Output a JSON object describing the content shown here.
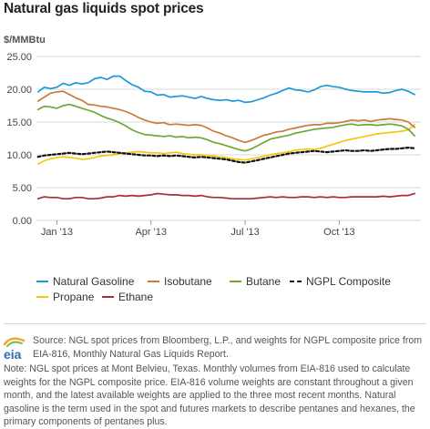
{
  "title": "Natural gas liquids spot prices",
  "unit_label": "$/MMBtu",
  "logo_text": "eia",
  "source_text": "Source: NGL spot prices from Bloomberg, L.P., and weights for NGPL composite price from EIA-816, Monthly Natural Gas Liquids Report.",
  "note_text": "Note: NGL spot prices at Mont Belvieu, Texas. Monthly volumes from EIA-816 used to calculate weights for the NGPL composite price. EIA-816 volume weights are constant throughout a given month, and the latest available weights are applied to the three most recent months. Natural gasoline is the term used in the spot and futures markets to describe pentanes and hexanes, the primary components of pentanes plus.",
  "chart_data": {
    "type": "line",
    "title": "Natural gas liquids spot prices",
    "ylabel": "$/MMBtu",
    "ylim": [
      0,
      25
    ],
    "yticks": [
      "0.00",
      "5.00",
      "10.00",
      "15.00",
      "20.00",
      "25.00"
    ],
    "ytick_values": [
      0,
      5,
      10,
      15,
      20,
      25
    ],
    "xlim": [
      -0.65,
      11.6
    ],
    "xticks": [
      {
        "label": "Jan '13",
        "month": 0
      },
      {
        "label": "Apr '13",
        "month": 3
      },
      {
        "label": "Jul '13",
        "month": 6
      },
      {
        "label": "Oct '13",
        "month": 9
      }
    ],
    "grid": true,
    "legend_position": "bottom",
    "x": [
      -0.6,
      -0.4,
      -0.2,
      0,
      0.2,
      0.4,
      0.6,
      0.8,
      1,
      1.2,
      1.4,
      1.6,
      1.8,
      2,
      2.2,
      2.4,
      2.6,
      2.8,
      3,
      3.2,
      3.4,
      3.6,
      3.8,
      4,
      4.2,
      4.4,
      4.6,
      4.8,
      5,
      5.2,
      5.4,
      5.6,
      5.8,
      6,
      6.2,
      6.4,
      6.6,
      6.8,
      7,
      7.2,
      7.4,
      7.6,
      7.8,
      8,
      8.2,
      8.4,
      8.6,
      8.8,
      9,
      9.2,
      9.4,
      9.6,
      9.8,
      10,
      10.2,
      10.4,
      10.6,
      10.8,
      11,
      11.2,
      11.4
    ],
    "series": [
      {
        "name": "Natural Gasoline",
        "color": "#1a9ad6",
        "dash": false,
        "values": [
          19.6,
          20.3,
          20.1,
          20.3,
          20.9,
          20.6,
          21.0,
          20.8,
          21.0,
          21.6,
          21.8,
          21.5,
          22.0,
          22.0,
          21.3,
          20.7,
          20.3,
          19.7,
          19.6,
          19.1,
          19.2,
          18.8,
          18.9,
          19.0,
          18.8,
          18.6,
          18.9,
          18.6,
          18.4,
          18.3,
          18.4,
          18.2,
          18.3,
          18.0,
          18.1,
          18.4,
          18.7,
          19.1,
          19.4,
          19.8,
          20.2,
          19.9,
          19.8,
          19.6,
          19.9,
          20.4,
          20.6,
          20.4,
          20.3,
          20.0,
          19.8,
          19.7,
          19.6,
          19.6,
          19.6,
          19.4,
          19.5,
          19.8,
          20.0,
          19.7,
          19.2
        ]
      },
      {
        "name": "Isobutane",
        "color": "#cc7a3c",
        "dash": false,
        "values": [
          18.2,
          18.8,
          19.4,
          19.6,
          19.7,
          19.2,
          18.7,
          18.3,
          17.7,
          17.6,
          17.4,
          17.3,
          17.1,
          16.9,
          16.6,
          16.2,
          15.7,
          15.3,
          15.0,
          14.8,
          14.9,
          14.6,
          14.7,
          14.6,
          14.5,
          14.6,
          14.5,
          14.1,
          13.6,
          13.3,
          12.9,
          12.6,
          12.2,
          11.9,
          12.2,
          12.6,
          13.0,
          13.2,
          13.5,
          13.6,
          13.9,
          14.1,
          14.3,
          14.5,
          14.6,
          14.6,
          14.8,
          14.8,
          14.9,
          15.1,
          15.3,
          15.2,
          15.3,
          15.1,
          15.3,
          15.4,
          15.5,
          15.4,
          15.3,
          15.0,
          14.2
        ]
      },
      {
        "name": "Butane",
        "color": "#6da832",
        "dash": false,
        "values": [
          16.9,
          17.4,
          17.3,
          17.1,
          17.5,
          17.7,
          17.4,
          17.1,
          16.8,
          16.5,
          16.0,
          15.6,
          15.3,
          14.9,
          14.4,
          13.8,
          13.4,
          13.1,
          13.0,
          12.9,
          12.8,
          12.9,
          12.7,
          12.8,
          12.6,
          12.7,
          12.6,
          12.3,
          11.9,
          11.7,
          11.4,
          11.1,
          10.8,
          10.6,
          10.9,
          11.4,
          11.9,
          12.4,
          12.6,
          12.8,
          13.0,
          13.3,
          13.5,
          13.7,
          13.9,
          14.0,
          14.1,
          14.2,
          14.4,
          14.6,
          14.7,
          14.5,
          14.6,
          14.6,
          14.5,
          14.6,
          14.7,
          14.6,
          14.4,
          13.9,
          12.9
        ]
      },
      {
        "name": "NGPL Composite",
        "color": "#111111",
        "dash": true,
        "values": [
          9.7,
          9.9,
          10.0,
          10.1,
          10.2,
          10.3,
          10.2,
          10.1,
          10.2,
          10.3,
          10.4,
          10.5,
          10.4,
          10.3,
          10.2,
          10.1,
          10.0,
          9.9,
          9.9,
          9.8,
          9.9,
          9.8,
          9.9,
          9.8,
          9.7,
          9.6,
          9.7,
          9.6,
          9.5,
          9.4,
          9.3,
          9.1,
          8.9,
          8.8,
          9.0,
          9.2,
          9.4,
          9.6,
          9.8,
          10.0,
          10.2,
          10.3,
          10.4,
          10.5,
          10.6,
          10.5,
          10.4,
          10.5,
          10.6,
          10.7,
          10.6,
          10.6,
          10.7,
          10.6,
          10.7,
          10.8,
          10.9,
          10.9,
          11.0,
          11.1,
          11.0
        ]
      },
      {
        "name": "Propane",
        "color": "#f2c80f",
        "dash": false,
        "values": [
          8.6,
          9.1,
          9.4,
          9.6,
          9.7,
          9.6,
          9.5,
          9.3,
          9.4,
          9.6,
          9.8,
          9.9,
          10.0,
          10.2,
          10.3,
          10.4,
          10.5,
          10.4,
          10.3,
          10.3,
          10.2,
          10.3,
          10.4,
          10.2,
          10.1,
          10.0,
          10.0,
          9.9,
          9.8,
          9.7,
          9.6,
          9.4,
          9.3,
          9.2,
          9.4,
          9.6,
          9.8,
          10.0,
          10.2,
          10.3,
          10.5,
          10.7,
          10.8,
          10.9,
          10.8,
          11.0,
          11.3,
          11.6,
          11.9,
          12.2,
          12.4,
          12.6,
          12.8,
          13.0,
          13.2,
          13.3,
          13.4,
          13.5,
          13.6,
          13.8,
          14.6
        ]
      },
      {
        "name": "Ethane",
        "color": "#a3303a",
        "dash": false,
        "values": [
          3.3,
          3.6,
          3.5,
          3.5,
          3.3,
          3.3,
          3.5,
          3.5,
          3.3,
          3.3,
          3.4,
          3.6,
          3.6,
          3.8,
          3.7,
          3.8,
          3.7,
          3.8,
          3.9,
          4.1,
          4.0,
          3.9,
          3.9,
          3.8,
          3.8,
          3.7,
          3.8,
          3.6,
          3.5,
          3.5,
          3.4,
          3.3,
          3.3,
          3.3,
          3.3,
          3.4,
          3.5,
          3.6,
          3.5,
          3.6,
          3.5,
          3.5,
          3.6,
          3.6,
          3.5,
          3.6,
          3.5,
          3.6,
          3.5,
          3.5,
          3.6,
          3.6,
          3.6,
          3.6,
          3.6,
          3.7,
          3.6,
          3.7,
          3.8,
          3.8,
          4.1
        ]
      }
    ]
  }
}
